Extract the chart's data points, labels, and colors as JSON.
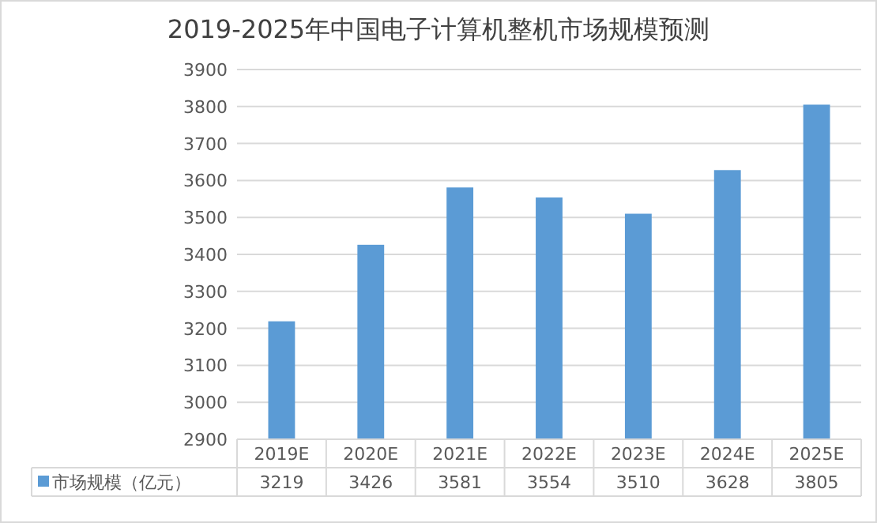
{
  "chart_data": {
    "type": "bar",
    "title": "2019-2025年中国电子计算机整机市场规模预测",
    "categories": [
      "2019E",
      "2020E",
      "2021E",
      "2022E",
      "2023E",
      "2024E",
      "2025E"
    ],
    "series": [
      {
        "name": "市场规模（亿元）",
        "color": "#5b9bd5",
        "values": [
          3219,
          3426,
          3581,
          3554,
          3510,
          3628,
          3805
        ]
      }
    ],
    "ylim": [
      2900,
      3900
    ],
    "yticks": [
      2900,
      3000,
      3100,
      3200,
      3300,
      3400,
      3500,
      3600,
      3700,
      3800,
      3900
    ],
    "grid": "y",
    "data_labels": true,
    "legend": "bottom"
  }
}
